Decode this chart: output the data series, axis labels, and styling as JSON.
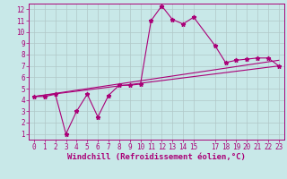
{
  "background_color": "#c8e8e8",
  "grid_color": "#b0c8c8",
  "line_color": "#aa0077",
  "xlabel": "Windchill (Refroidissement éolien,°C)",
  "xlim": [
    -0.5,
    23.5
  ],
  "ylim": [
    0.5,
    12.5
  ],
  "xticks": [
    0,
    1,
    2,
    3,
    4,
    5,
    6,
    7,
    8,
    9,
    10,
    11,
    12,
    13,
    14,
    15,
    17,
    18,
    19,
    20,
    21,
    22,
    23
  ],
  "yticks": [
    1,
    2,
    3,
    4,
    5,
    6,
    7,
    8,
    9,
    10,
    11,
    12
  ],
  "series1_x": [
    0,
    1,
    2,
    3,
    4,
    5,
    6,
    7,
    8,
    9,
    10,
    11,
    12,
    13,
    14,
    15,
    17,
    18,
    19,
    20,
    21,
    22,
    23
  ],
  "series1_y": [
    4.3,
    4.3,
    4.5,
    1.0,
    3.0,
    4.5,
    2.5,
    4.4,
    5.3,
    5.3,
    5.4,
    11.0,
    12.3,
    11.1,
    10.7,
    11.3,
    8.8,
    7.3,
    7.5,
    7.6,
    7.7,
    7.7,
    7.0
  ],
  "series2_x": [
    0,
    23
  ],
  "series2_y": [
    4.3,
    7.5
  ],
  "series3_x": [
    0,
    23
  ],
  "series3_y": [
    4.3,
    7.0
  ],
  "font_size_label": 6.5,
  "font_size_tick": 5.5
}
